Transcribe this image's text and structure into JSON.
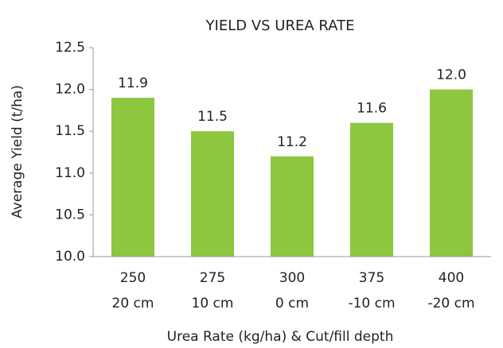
{
  "chart_data": {
    "type": "bar",
    "title": "YIELD VS UREA RATE",
    "x_label": "Urea Rate (kg/ha) & Cut/fill depth",
    "y_label": "Average Yield (t/ha)",
    "categories": [
      [
        "250",
        "20 cm"
      ],
      [
        "275",
        "10 cm"
      ],
      [
        "300",
        "0 cm"
      ],
      [
        "375",
        "-10 cm"
      ],
      [
        "400",
        "-20 cm"
      ]
    ],
    "values": [
      11.9,
      11.5,
      11.2,
      11.6,
      12.0
    ],
    "value_labels": [
      "11.9",
      "11.5",
      "11.2",
      "11.6",
      "12.0"
    ],
    "color": "#8dc63f",
    "ylim": [
      10.0,
      12.5
    ],
    "yticks": [
      {
        "value": 10.0,
        "label": "10.0"
      },
      10.5,
      {
        "value": 11.0,
        "label": "11.0"
      },
      11.5,
      {
        "value": 12.0,
        "label": "12.0"
      },
      12.5
    ],
    "grid": false
  }
}
